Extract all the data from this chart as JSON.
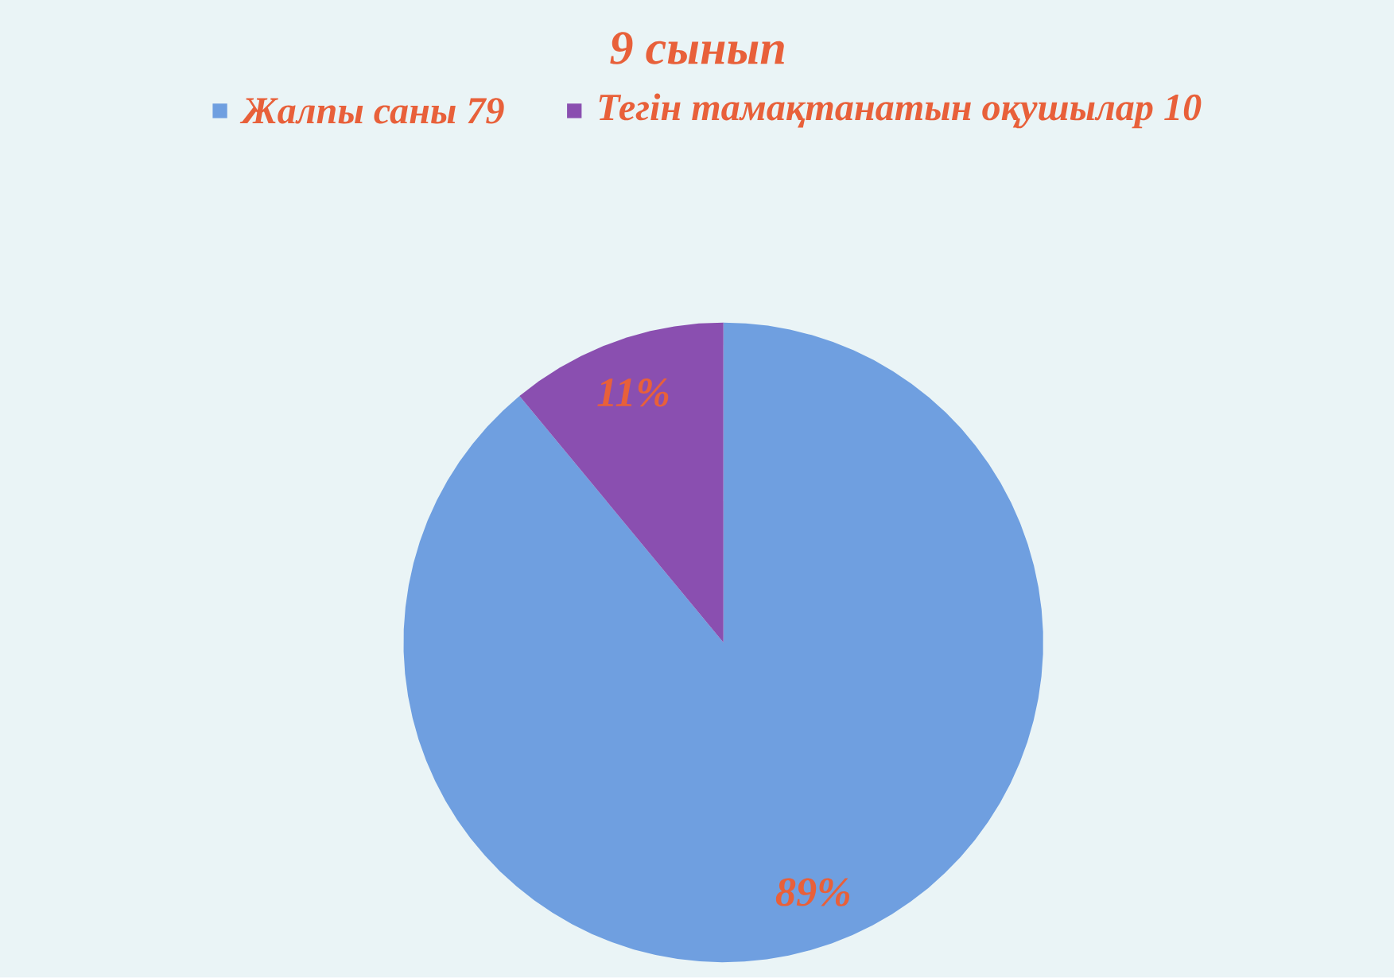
{
  "chart_data": {
    "type": "pie",
    "title": "9 сынып",
    "categories": [
      "Жалпы саны 79",
      "Тегін тамақтанатын оқушылар 10"
    ],
    "values": [
      89,
      11
    ],
    "colors": [
      "#6f9fe0",
      "#8a4fb0"
    ],
    "value_labels": [
      "89%",
      "11%"
    ],
    "legend": "top"
  }
}
